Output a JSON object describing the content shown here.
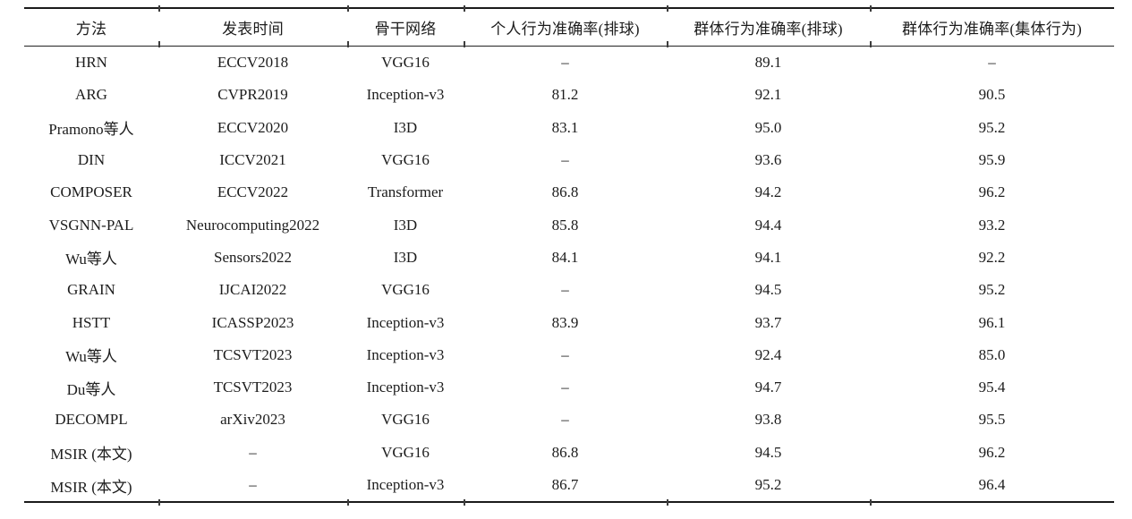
{
  "page": {
    "background": "#ffffff"
  },
  "colors": {
    "text": "#1c1c1c",
    "rule": "#1b1b1b"
  },
  "table": {
    "columns": [
      "方法",
      "发表时间",
      "骨干网络",
      "个人行为准确率(排球)",
      "群体行为准确率(排球)",
      "群体行为准确率(集体行为)"
    ],
    "rows": [
      [
        "HRN",
        "ECCV2018",
        "VGG16",
        "–",
        "89.1",
        "–"
      ],
      [
        "ARG",
        "CVPR2019",
        "Inception-v3",
        "81.2",
        "92.1",
        "90.5"
      ],
      [
        "Pramono等人",
        "ECCV2020",
        "I3D",
        "83.1",
        "95.0",
        "95.2"
      ],
      [
        "DIN",
        "ICCV2021",
        "VGG16",
        "–",
        "93.6",
        "95.9"
      ],
      [
        "COMPOSER",
        "ECCV2022",
        "Transformer",
        "86.8",
        "94.2",
        "96.2"
      ],
      [
        "VSGNN-PAL",
        "Neurocomputing2022",
        "I3D",
        "85.8",
        "94.4",
        "93.2"
      ],
      [
        "Wu等人",
        "Sensors2022",
        "I3D",
        "84.1",
        "94.1",
        "92.2"
      ],
      [
        "GRAIN",
        "IJCAI2022",
        "VGG16",
        "–",
        "94.5",
        "95.2"
      ],
      [
        "HSTT",
        "ICASSP2023",
        "Inception-v3",
        "83.9",
        "93.7",
        "96.1"
      ],
      [
        "Wu等人",
        "TCSVT2023",
        "Inception-v3",
        "–",
        "92.4",
        "85.0"
      ],
      [
        "Du等人",
        "TCSVT2023",
        "Inception-v3",
        "–",
        "94.7",
        "95.4"
      ],
      [
        "DECOMPL",
        "arXiv2023",
        "VGG16",
        "–",
        "93.8",
        "95.5"
      ],
      [
        "MSIR (本文)",
        "–",
        "VGG16",
        "86.8",
        "94.5",
        "96.2"
      ],
      [
        "MSIR (本文)",
        "–",
        "Inception-v3",
        "86.7",
        "95.2",
        "96.4"
      ]
    ]
  }
}
